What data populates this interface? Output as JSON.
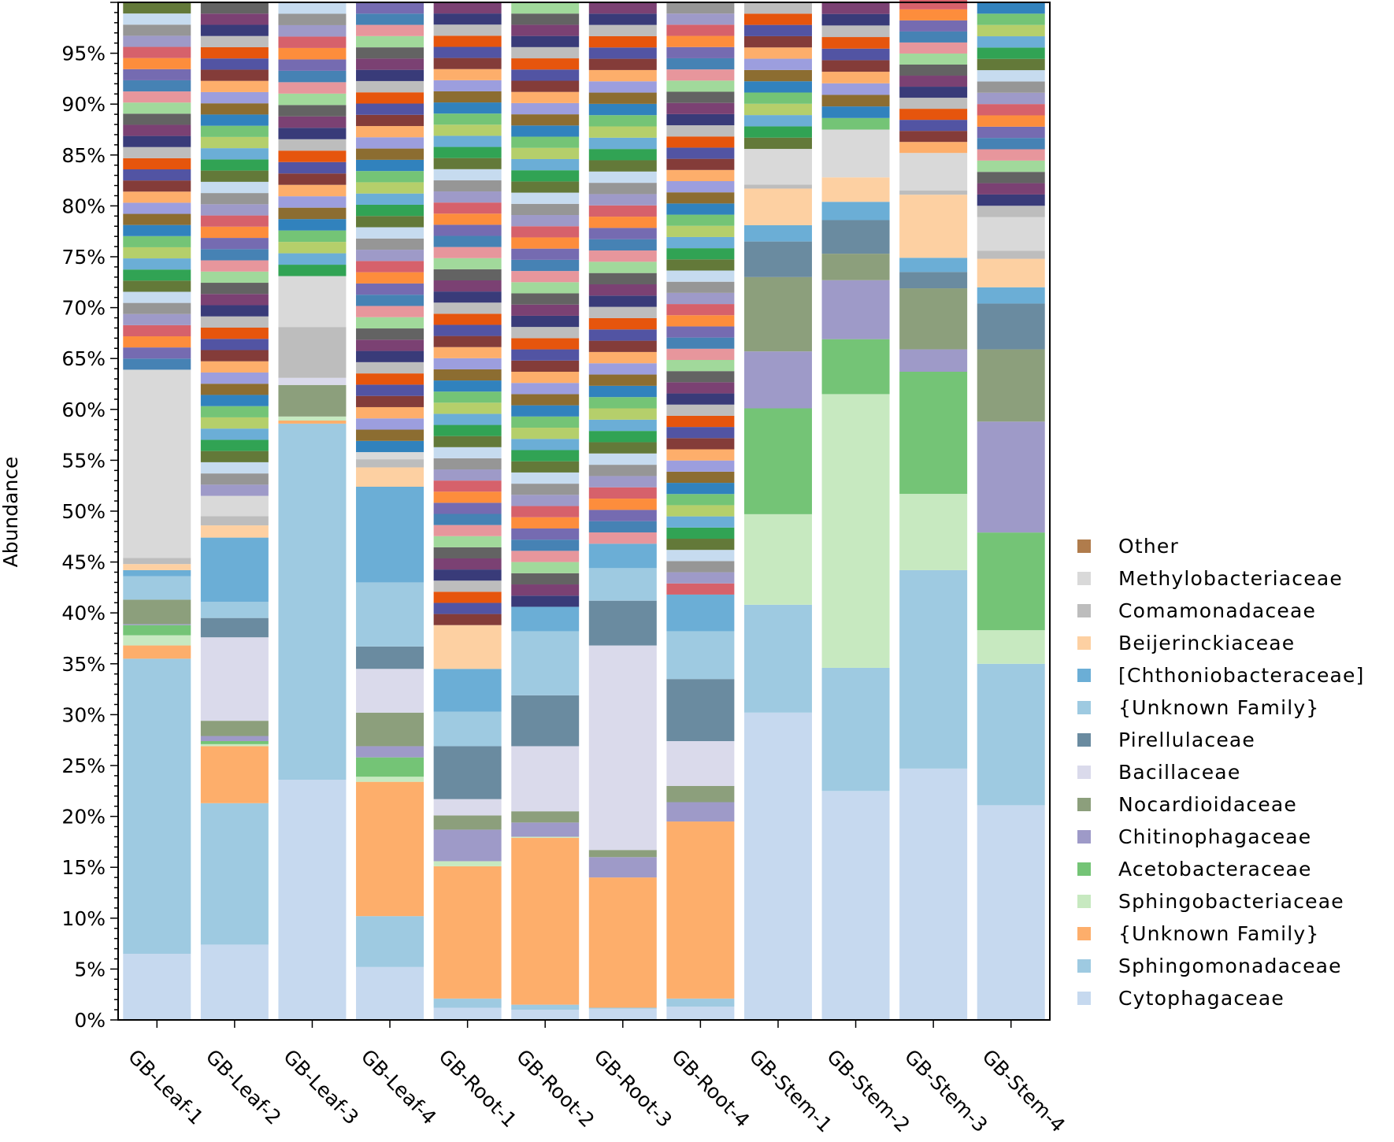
{
  "chart_data": {
    "type": "stacked-bar",
    "title": "",
    "xlabel": "",
    "ylabel": "Abundance",
    "ylim": [
      0,
      100
    ],
    "y_ticks": [
      "0%",
      "5%",
      "10%",
      "15%",
      "20%",
      "25%",
      "30%",
      "35%",
      "40%",
      "45%",
      "50%",
      "55%",
      "60%",
      "65%",
      "70%",
      "75%",
      "80%",
      "85%",
      "90%",
      "95%"
    ],
    "legend_position": "right",
    "categories": [
      "GB-Leaf-1",
      "GB-Leaf-2",
      "GB-Leaf-3",
      "GB-Leaf-4",
      "GB-Root-1",
      "GB-Root-2",
      "GB-Root-3",
      "GB-Root-4",
      "GB-Stem-1",
      "GB-Stem-2",
      "GB-Stem-3",
      "GB-Stem-4"
    ],
    "series": [
      {
        "name": "Cytophagaceae",
        "color": "#c6d9ef",
        "values": [
          6.5,
          7.4,
          23.6,
          5.2,
          1.2,
          1.0,
          1.1,
          1.3,
          30.2,
          22.5,
          24.7,
          21.1
        ]
      },
      {
        "name": "Sphingomonadaceae",
        "color": "#9ecae1",
        "values": [
          29.0,
          13.9,
          35.0,
          5.0,
          0.9,
          0.5,
          0.1,
          0.8,
          10.6,
          12.1,
          19.5,
          13.9
        ]
      },
      {
        "name": "{Unknown Family}",
        "color": "#fdae6b",
        "values": [
          1.3,
          5.6,
          0.3,
          13.2,
          13.0,
          16.4,
          12.8,
          17.4,
          0.0,
          0.0,
          0.0,
          0.0
        ]
      },
      {
        "name": "Sphingobacteriaceae",
        "color": "#c7e9c0",
        "values": [
          1.0,
          0.2,
          0.4,
          0.5,
          0.5,
          0.1,
          0.0,
          0.0,
          8.9,
          26.9,
          7.5,
          3.3
        ]
      },
      {
        "name": "Acetobacteraceae",
        "color": "#74c476",
        "values": [
          1.0,
          0.3,
          0.0,
          1.9,
          0.0,
          0.0,
          0.0,
          0.0,
          10.4,
          5.4,
          12.0,
          9.6
        ]
      },
      {
        "name": "Chitinophagaceae",
        "color": "#9e9ac8",
        "values": [
          0.1,
          0.5,
          0.0,
          1.1,
          3.1,
          1.4,
          2.0,
          1.9,
          5.6,
          5.8,
          2.2,
          10.9
        ]
      },
      {
        "name": "Nocardioidaceae",
        "color": "#8c9f7c",
        "values": [
          2.4,
          1.5,
          3.1,
          3.3,
          1.4,
          1.1,
          0.7,
          1.6,
          7.3,
          2.6,
          6.0,
          7.1
        ]
      },
      {
        "name": "Bacillaceae",
        "color": "#dadaeb",
        "values": [
          0.0,
          8.2,
          0.7,
          4.3,
          1.6,
          6.4,
          20.1,
          4.4,
          0.0,
          0.0,
          0.0,
          0.0
        ]
      },
      {
        "name": "Pirellulaceae",
        "color": "#6a8ba0",
        "values": [
          0.0,
          1.9,
          0.0,
          2.2,
          5.2,
          5.0,
          4.4,
          6.1,
          3.5,
          3.3,
          1.6,
          4.5
        ]
      },
      {
        "name": "{Unknown Family}",
        "color": "#9ecae1",
        "values": [
          2.3,
          1.6,
          0.0,
          6.3,
          3.4,
          6.3,
          3.2,
          4.7,
          0.0,
          0.0,
          0.0,
          0.0
        ]
      },
      {
        "name": "[Chthoniobacteraceae]",
        "color": "#6baed6",
        "values": [
          0.6,
          6.3,
          0.0,
          9.4,
          4.2,
          2.4,
          2.4,
          3.6,
          1.6,
          1.8,
          1.4,
          1.6
        ]
      },
      {
        "name": "Beijerinckiaceae",
        "color": "#fdd0a2",
        "values": [
          0.6,
          1.2,
          0.0,
          1.9,
          4.3,
          0.0,
          0.0,
          0.0,
          3.6,
          2.4,
          6.2,
          2.8
        ]
      },
      {
        "name": "Comamonadaceae",
        "color": "#bdbdbd",
        "values": [
          0.6,
          0.9,
          5.0,
          0.8,
          0.0,
          0.0,
          0.0,
          0.0,
          0.4,
          0.0,
          0.4,
          0.8
        ]
      },
      {
        "name": "Methylobacteriaceae",
        "color": "#d9d9d9",
        "values": [
          18.5,
          2.0,
          5.0,
          0.7,
          0.0,
          0.0,
          0.0,
          0.0,
          3.5,
          4.7,
          3.7,
          3.3
        ]
      },
      {
        "name": "Other",
        "color": "#b07c4c",
        "values": [
          36.1,
          48.5,
          26.9,
          44.2,
          61.2,
          59.4,
          53.2,
          58.2,
          14.4,
          12.5,
          15.2,
          21.1
        ]
      }
    ]
  }
}
